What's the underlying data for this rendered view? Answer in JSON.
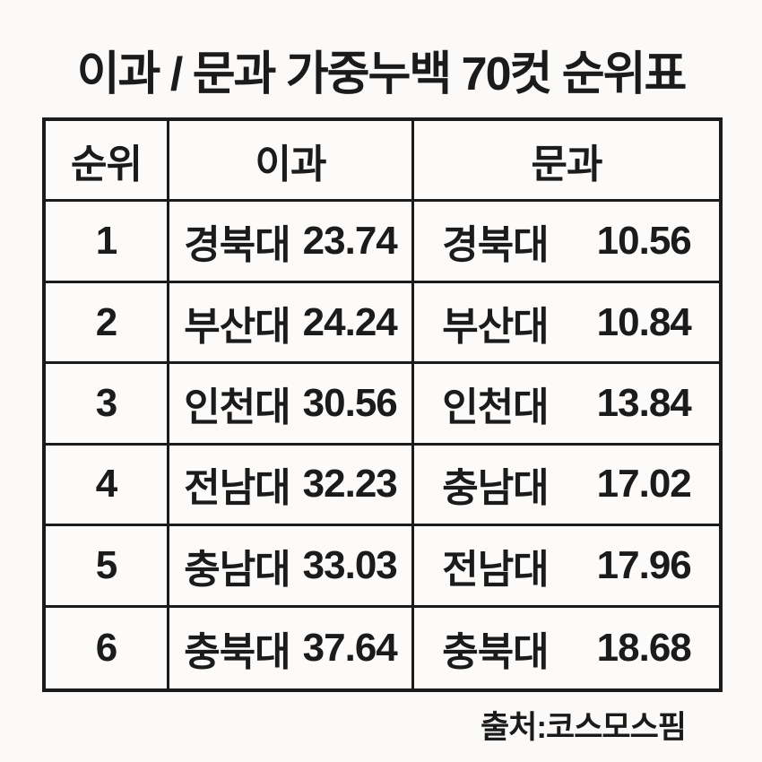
{
  "title": "이과 / 문과 가중누백 70컷 순위표",
  "table": {
    "columns": [
      "순위",
      "이과",
      "문과"
    ],
    "rows": [
      {
        "rank": "1",
        "sci_name": "경북대",
        "sci_value": "23.74",
        "lib_name": "경북대",
        "lib_value": "10.56"
      },
      {
        "rank": "2",
        "sci_name": "부산대",
        "sci_value": "24.24",
        "lib_name": "부산대",
        "lib_value": "10.84"
      },
      {
        "rank": "3",
        "sci_name": "인천대",
        "sci_value": "30.56",
        "lib_name": "인천대",
        "lib_value": "13.84"
      },
      {
        "rank": "4",
        "sci_name": "전남대",
        "sci_value": "32.23",
        "lib_name": "충남대",
        "lib_value": "17.02"
      },
      {
        "rank": "5",
        "sci_name": "충남대",
        "sci_value": "33.03",
        "lib_name": "전남대",
        "lib_value": "17.96"
      },
      {
        "rank": "6",
        "sci_name": "충북대",
        "sci_value": "37.64",
        "lib_name": "충북대",
        "lib_value": "18.68"
      }
    ]
  },
  "footer": {
    "source": "출처:코스모스핌"
  },
  "colors": {
    "background": "#fbfaf8",
    "border": "#1b1b1b",
    "text": "#1b1b1b"
  },
  "chart_data": {
    "type": "table",
    "title": "이과 / 문과 가중누백 70컷 순위표",
    "columns": [
      "순위",
      "이과",
      "문과"
    ],
    "rows": [
      [
        "1",
        "경북대 23.74",
        "경북대 10.56"
      ],
      [
        "2",
        "부산대 24.24",
        "부산대 10.84"
      ],
      [
        "3",
        "인천대 30.56",
        "인천대 13.84"
      ],
      [
        "4",
        "전남대 32.23",
        "충남대 17.02"
      ],
      [
        "5",
        "충남대 33.03",
        "전남대 17.96"
      ],
      [
        "6",
        "충북대 37.64",
        "충북대 18.68"
      ]
    ],
    "series": [
      {
        "name": "이과",
        "categories": [
          "경북대",
          "부산대",
          "인천대",
          "전남대",
          "충남대",
          "충북대"
        ],
        "values": [
          23.74,
          24.24,
          30.56,
          32.23,
          33.03,
          37.64
        ]
      },
      {
        "name": "문과",
        "categories": [
          "경북대",
          "부산대",
          "인천대",
          "충남대",
          "전남대",
          "충북대"
        ],
        "values": [
          10.56,
          10.84,
          13.84,
          17.02,
          17.96,
          18.68
        ]
      }
    ],
    "source": "출처:코스모스핌"
  }
}
